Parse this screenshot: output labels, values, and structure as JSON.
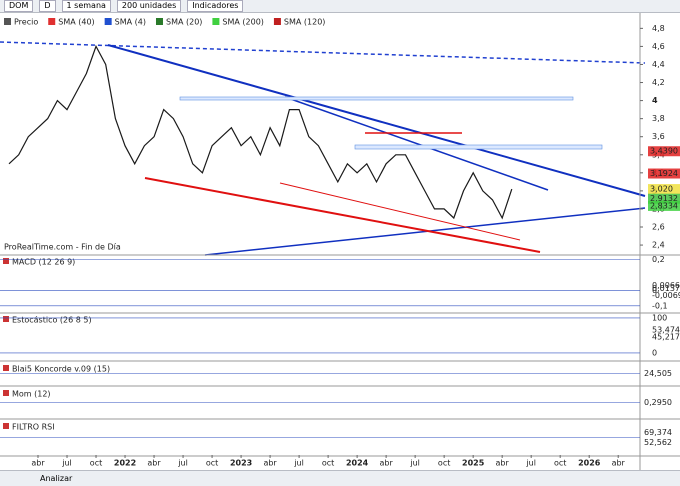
{
  "toolbar": {
    "symbol": "DOM",
    "mode": "D",
    "period": "1 semana",
    "units": "200 unidades",
    "indicators": "Indicadores"
  },
  "chart_data": {
    "type": "line",
    "watermark": "ProRealTime.com - Fin de Día",
    "legend": [
      {
        "name": "Precio",
        "color": "#555555"
      },
      {
        "name": "SMA (40)",
        "color": "#e03030"
      },
      {
        "name": "SMA (4)",
        "color": "#2050d0"
      },
      {
        "name": "SMA (20)",
        "color": "#2a7a2a"
      },
      {
        "name": "SMA (200)",
        "color": "#40d040"
      },
      {
        "name": "SMA (120)",
        "color": "#c02020"
      }
    ],
    "x": [
      "2021-01",
      "2021-02",
      "2021-03",
      "2021-04",
      "2021-05",
      "2021-06",
      "2021-07",
      "2021-08",
      "2021-09",
      "2021-10",
      "2021-11",
      "2021-12",
      "2022-01",
      "2022-02",
      "2022-03",
      "2022-04",
      "2022-05",
      "2022-06",
      "2022-07",
      "2022-08",
      "2022-09",
      "2022-10",
      "2022-11",
      "2022-12",
      "2023-01",
      "2023-02",
      "2023-03",
      "2023-04",
      "2023-05",
      "2023-06",
      "2023-07",
      "2023-08",
      "2023-09",
      "2023-10",
      "2023-11",
      "2023-12",
      "2024-01",
      "2024-02",
      "2024-03",
      "2024-04",
      "2024-05",
      "2024-06",
      "2024-07",
      "2024-08",
      "2024-09",
      "2024-10",
      "2024-11",
      "2024-12",
      "2025-01",
      "2025-02",
      "2025-03",
      "2025-04",
      "2025-05"
    ],
    "series": [
      {
        "name": "Precio",
        "color": "#1a1a1a",
        "values": [
          3.3,
          3.4,
          3.6,
          3.7,
          3.8,
          4.0,
          3.9,
          4.1,
          4.3,
          4.6,
          4.4,
          3.8,
          3.5,
          3.3,
          3.5,
          3.6,
          3.9,
          3.8,
          3.6,
          3.3,
          3.2,
          3.5,
          3.6,
          3.7,
          3.5,
          3.6,
          3.4,
          3.7,
          3.5,
          3.9,
          3.9,
          3.6,
          3.5,
          3.3,
          3.1,
          3.3,
          3.2,
          3.3,
          3.1,
          3.3,
          3.4,
          3.4,
          3.2,
          3.0,
          2.8,
          2.8,
          2.7,
          3.0,
          3.2,
          3.0,
          2.9,
          2.7,
          3.02
        ]
      }
    ],
    "ylim": [
      2.29,
      4.97
    ],
    "yticks": [
      {
        "value": 4.8,
        "label": "4,8"
      },
      {
        "value": 4.6,
        "label": "4,6"
      },
      {
        "value": 4.4,
        "label": "4,4"
      },
      {
        "value": 4.2,
        "label": "4,2"
      },
      4,
      {
        "value": 3.8,
        "label": "3,8"
      },
      {
        "value": 3.6,
        "label": "3,6"
      },
      {
        "value": 3.4,
        "label": "3,4"
      },
      {
        "value": 3.2,
        "label": "3,2"
      },
      3,
      {
        "value": 2.8,
        "label": "2,8"
      },
      {
        "value": 2.6,
        "label": "2,6"
      },
      {
        "value": 2.4,
        "label": "2,4"
      }
    ],
    "price_labels": [
      {
        "value": 3.439,
        "label": "3,4390",
        "color": "#e02020"
      },
      {
        "value": 3.1924,
        "label": "3,1924",
        "color": "#e02020"
      },
      {
        "value": 3.02,
        "label": "3,020",
        "color": "#f0e040"
      },
      {
        "value": 2.9132,
        "label": "2,9132",
        "color": "#40c040"
      },
      {
        "value": 2.8334,
        "label": "2,8334",
        "color": "#40d040"
      }
    ],
    "xticks": [
      {
        "value": "2021-04",
        "label": "abr"
      },
      {
        "value": "2021-07",
        "label": "jul"
      },
      {
        "value": "2021-10",
        "label": "oct"
      },
      {
        "value": "2022-01",
        "label": "2022"
      },
      {
        "value": "2022-04",
        "label": "abr"
      },
      {
        "value": "2022-07",
        "label": "jul"
      },
      {
        "value": "2022-10",
        "label": "oct"
      },
      {
        "value": "2023-01",
        "label": "2023"
      },
      {
        "value": "2023-04",
        "label": "abr"
      },
      {
        "value": "2023-07",
        "label": "jul"
      },
      {
        "value": "2023-10",
        "label": "oct"
      },
      {
        "value": "2024-01",
        "label": "2024"
      },
      {
        "value": "2024-04",
        "label": "abr"
      },
      {
        "value": "2024-07",
        "label": "jul"
      },
      {
        "value": "2024-10",
        "label": "oct"
      },
      {
        "value": "2025-01",
        "label": "2025"
      },
      {
        "value": "2025-04",
        "label": "abr"
      },
      {
        "value": "2025-07",
        "label": "jul"
      },
      {
        "value": "2025-10",
        "label": "oct"
      },
      {
        "value": "2026-01",
        "label": "2026"
      },
      {
        "value": "2026-04",
        "label": "abr"
      }
    ]
  },
  "panels": [
    {
      "name": "MACD (12 26 9)",
      "ylim": [
        -0.14,
        0.23
      ],
      "yticks": [
        {
          "value": 0.2,
          "label": "0,2"
        },
        0,
        {
          "value": -0.1,
          "label": "-0,1"
        }
      ],
      "price_labels": [
        {
          "value": 0.0066,
          "label": "0,0066",
          "color": "#40c040"
        },
        {
          "value": 0.0137,
          "label": "0,0137",
          "color": "#2050d0"
        },
        {
          "value": -0.0069,
          "label": "-0,0069",
          "color": "#e02020"
        }
      ]
    },
    {
      "name": "Estocástico (26 8 5)",
      "ylim": [
        -20,
        114
      ],
      "yticks": [
        100,
        0
      ],
      "price_labels": [
        {
          "value": 53.474,
          "label": "53,474",
          "color": "#40c040"
        },
        {
          "value": 45.217,
          "label": "45,217",
          "color": "#e02020"
        }
      ]
    },
    {
      "name": "Blai5 Koncorde v.09 (15)",
      "labels": [
        "24,505"
      ]
    },
    {
      "name": "Mom (12)",
      "labels": [
        "0,2950"
      ]
    },
    {
      "name": "FILTRO RSI",
      "labels": [
        "69,374",
        "52,562"
      ]
    }
  ],
  "bottom": {
    "analyze": "Analizar"
  }
}
